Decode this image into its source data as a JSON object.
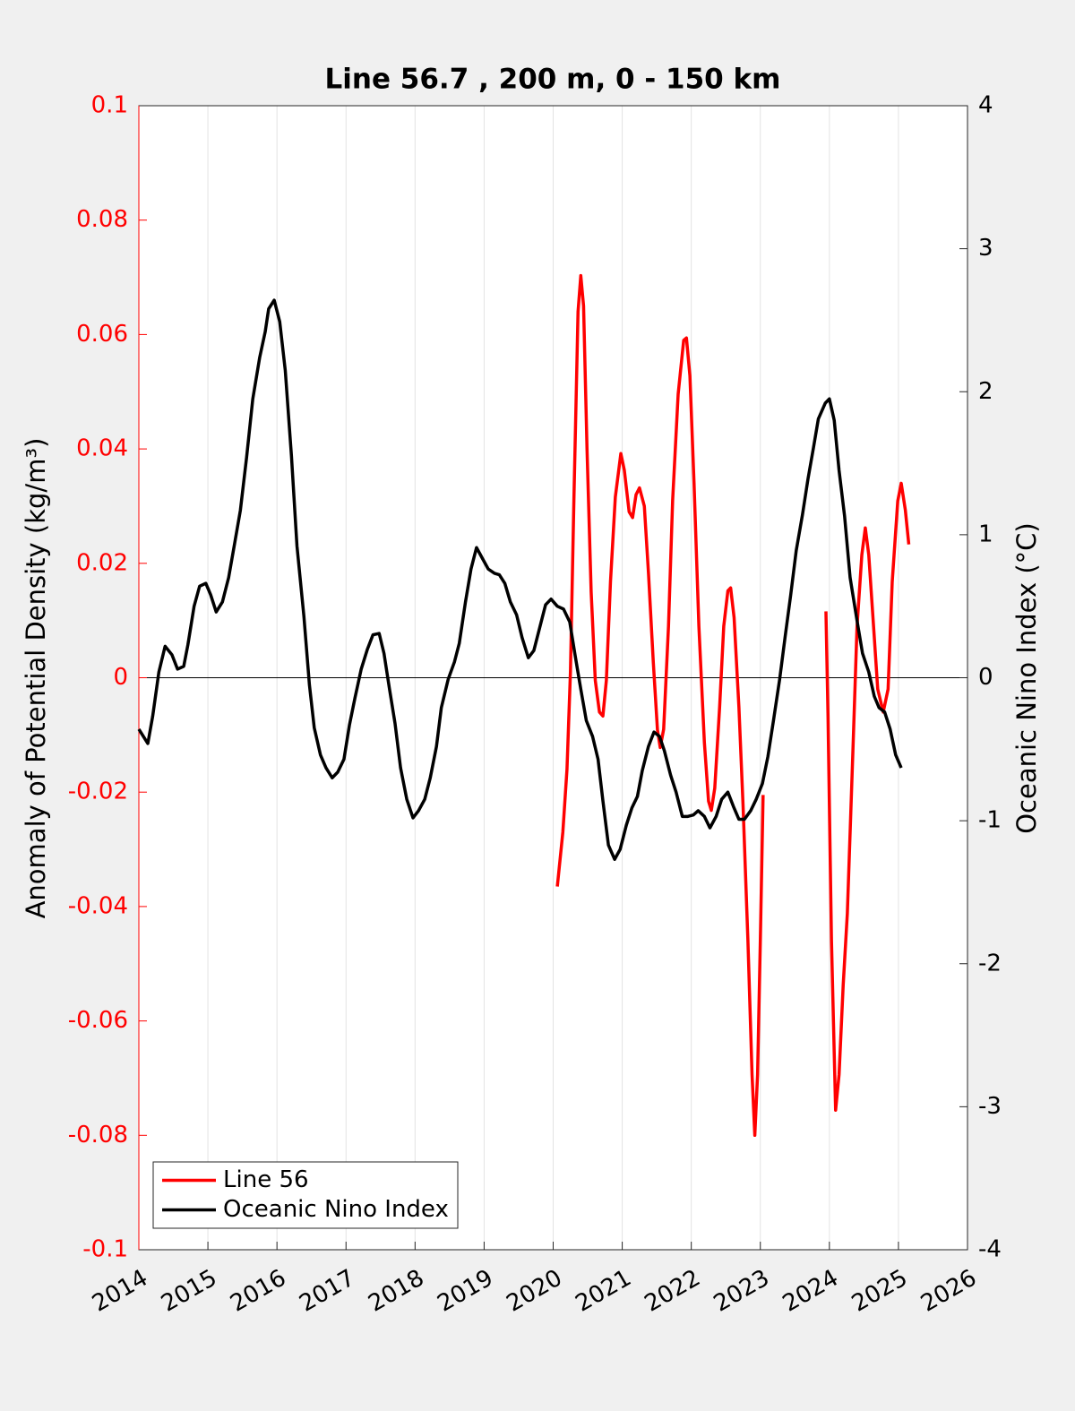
{
  "chart_data": {
    "type": "line",
    "title": "Line 56.7 , 200 m, 0 - 150 km",
    "ylabel": "Anomaly of Potential Density (kg/m³)",
    "y2label": "Oceanic Nino Index (°C)",
    "xlim": [
      2014,
      2026
    ],
    "xticks": [
      2014,
      2015,
      2016,
      2017,
      2018,
      2019,
      2020,
      2021,
      2022,
      2023,
      2024,
      2025,
      2026
    ],
    "ylim": [
      -0.1,
      0.1
    ],
    "yticks": [
      -0.1,
      -0.08,
      -0.06,
      -0.04,
      -0.02,
      0,
      0.02,
      0.04,
      0.06,
      0.08,
      0.1
    ],
    "y2lim": [
      -4,
      4
    ],
    "y2ticks": [
      -4,
      -3,
      -2,
      -1,
      0,
      1,
      2,
      3,
      4
    ],
    "grid": true,
    "zero_line": true,
    "legend": "lower left",
    "ycolor": "#ff0000",
    "series": [
      {
        "name": "Line 56",
        "color": "#ff0000",
        "x": [
          2020.06,
          2020.14,
          2020.2,
          2020.25,
          2020.3,
          2020.36,
          2020.4,
          2020.44,
          2020.49,
          2020.55,
          2020.61,
          2020.67,
          2020.72,
          2020.77,
          2020.83,
          2020.9,
          2020.98,
          2021.03,
          2021.1,
          2021.15,
          2021.2,
          2021.25,
          2021.32,
          2021.38,
          2021.45,
          2021.51,
          2021.55,
          2021.6,
          2021.67,
          2021.73,
          2021.81,
          2021.89,
          2021.93,
          2021.98,
          2022.04,
          2022.11,
          2022.19,
          2022.25,
          2022.29,
          2022.34,
          2022.41,
          2022.47,
          2022.53,
          2022.57,
          2022.62,
          2022.69,
          2022.75,
          2022.82,
          2022.88,
          2022.92,
          2022.96,
          2023.0,
          2023.04,
          2023.5,
          2023.95,
          2023.98,
          2024.03,
          2024.09,
          2024.14,
          2024.2,
          2024.26,
          2024.34,
          2024.4,
          2024.47,
          2024.52,
          2024.57,
          2024.64,
          2024.7,
          2024.78,
          2024.85,
          2024.91,
          2024.99,
          2025.04,
          2025.1,
          2025.15
        ],
        "values": [
          -0.0365,
          -0.027,
          -0.016,
          0.001,
          0.031,
          0.064,
          0.0703,
          0.065,
          0.04,
          0.015,
          -0.0005,
          -0.006,
          -0.0067,
          -0.0005,
          0.0168,
          0.0316,
          0.0392,
          0.0363,
          0.029,
          0.028,
          0.032,
          0.0332,
          0.03,
          0.0183,
          0.0027,
          -0.0091,
          -0.0122,
          -0.009,
          0.009,
          0.031,
          0.0496,
          0.059,
          0.0594,
          0.0528,
          0.034,
          0.009,
          -0.0114,
          -0.0216,
          -0.0232,
          -0.0193,
          -0.0052,
          0.009,
          0.0152,
          0.0157,
          0.0105,
          -0.0052,
          -0.0224,
          -0.0459,
          -0.0694,
          -0.08,
          -0.0694,
          -0.0459,
          -0.0205,
          null,
          0.0116,
          -0.0067,
          -0.0459,
          -0.0756,
          -0.0694,
          -0.0537,
          -0.0412,
          -0.013,
          0.0089,
          0.0215,
          0.0262,
          0.0215,
          0.0089,
          -0.002,
          -0.006,
          -0.002,
          0.0168,
          0.0309,
          0.034,
          0.0293,
          0.0233
        ]
      },
      {
        "name": "Oceanic Nino Index",
        "color": "#000000",
        "axis": "y2",
        "x": [
          2014.0,
          2014.13,
          2014.2,
          2014.29,
          2014.38,
          2014.48,
          2014.56,
          2014.65,
          2014.71,
          2014.8,
          2014.88,
          2014.97,
          2015.04,
          2015.12,
          2015.21,
          2015.3,
          2015.38,
          2015.47,
          2015.56,
          2015.65,
          2015.75,
          2015.83,
          2015.88,
          2015.96,
          2016.04,
          2016.12,
          2016.21,
          2016.29,
          2016.39,
          2016.47,
          2016.54,
          2016.63,
          2016.71,
          2016.8,
          2016.88,
          2016.97,
          2017.05,
          2017.13,
          2017.22,
          2017.31,
          2017.39,
          2017.48,
          2017.55,
          2017.63,
          2017.71,
          2017.79,
          2017.88,
          2017.97,
          2018.05,
          2018.14,
          2018.22,
          2018.31,
          2018.38,
          2018.48,
          2018.57,
          2018.64,
          2018.73,
          2018.81,
          2018.89,
          2018.98,
          2019.06,
          2019.15,
          2019.22,
          2019.3,
          2019.38,
          2019.47,
          2019.55,
          2019.64,
          2019.72,
          2019.81,
          2019.89,
          2019.97,
          2020.06,
          2020.15,
          2020.24,
          2020.32,
          2020.4,
          2020.48,
          2020.57,
          2020.65,
          2020.72,
          2020.8,
          2020.89,
          2020.97,
          2021.06,
          2021.14,
          2021.22,
          2021.29,
          2021.38,
          2021.46,
          2021.54,
          2021.61,
          2021.7,
          2021.78,
          2021.87,
          2021.95,
          2022.03,
          2022.1,
          2022.19,
          2022.27,
          2022.36,
          2022.44,
          2022.53,
          2022.61,
          2022.69,
          2022.77,
          2022.86,
          2022.94,
          2023.03,
          2023.11,
          2023.19,
          2023.28,
          2023.36,
          2023.44,
          2023.52,
          2023.61,
          2023.69,
          2023.77,
          2023.84,
          2023.94,
          2024.0,
          2024.07,
          2024.14,
          2024.22,
          2024.3,
          2024.4,
          2024.48,
          2024.57,
          2024.65,
          2024.72,
          2024.8,
          2024.88,
          2024.96,
          2025.04
        ],
        "values": [
          -0.36,
          -0.46,
          -0.27,
          0.04,
          0.22,
          0.16,
          0.06,
          0.08,
          0.23,
          0.5,
          0.64,
          0.66,
          0.58,
          0.46,
          0.53,
          0.7,
          0.92,
          1.17,
          1.54,
          1.95,
          2.24,
          2.42,
          2.58,
          2.64,
          2.49,
          2.15,
          1.55,
          0.92,
          0.43,
          -0.05,
          -0.35,
          -0.54,
          -0.63,
          -0.7,
          -0.66,
          -0.57,
          -0.33,
          -0.14,
          0.06,
          0.2,
          0.3,
          0.31,
          0.17,
          -0.08,
          -0.32,
          -0.63,
          -0.85,
          -0.98,
          -0.93,
          -0.85,
          -0.7,
          -0.48,
          -0.21,
          -0.01,
          0.11,
          0.24,
          0.53,
          0.76,
          0.91,
          0.83,
          0.76,
          0.73,
          0.72,
          0.66,
          0.53,
          0.44,
          0.28,
          0.14,
          0.19,
          0.36,
          0.51,
          0.55,
          0.5,
          0.48,
          0.39,
          0.15,
          -0.08,
          -0.3,
          -0.41,
          -0.57,
          -0.86,
          -1.17,
          -1.27,
          -1.2,
          -1.03,
          -0.91,
          -0.83,
          -0.65,
          -0.48,
          -0.38,
          -0.41,
          -0.51,
          -0.68,
          -0.8,
          -0.97,
          -0.97,
          -0.96,
          -0.93,
          -0.97,
          -1.05,
          -0.97,
          -0.85,
          -0.8,
          -0.9,
          -0.99,
          -0.99,
          -0.93,
          -0.85,
          -0.74,
          -0.55,
          -0.3,
          -0.01,
          0.29,
          0.58,
          0.89,
          1.14,
          1.39,
          1.61,
          1.81,
          1.92,
          1.95,
          1.8,
          1.45,
          1.13,
          0.7,
          0.4,
          0.17,
          0.04,
          -0.13,
          -0.21,
          -0.24,
          -0.36,
          -0.54,
          -0.63
        ]
      }
    ]
  }
}
